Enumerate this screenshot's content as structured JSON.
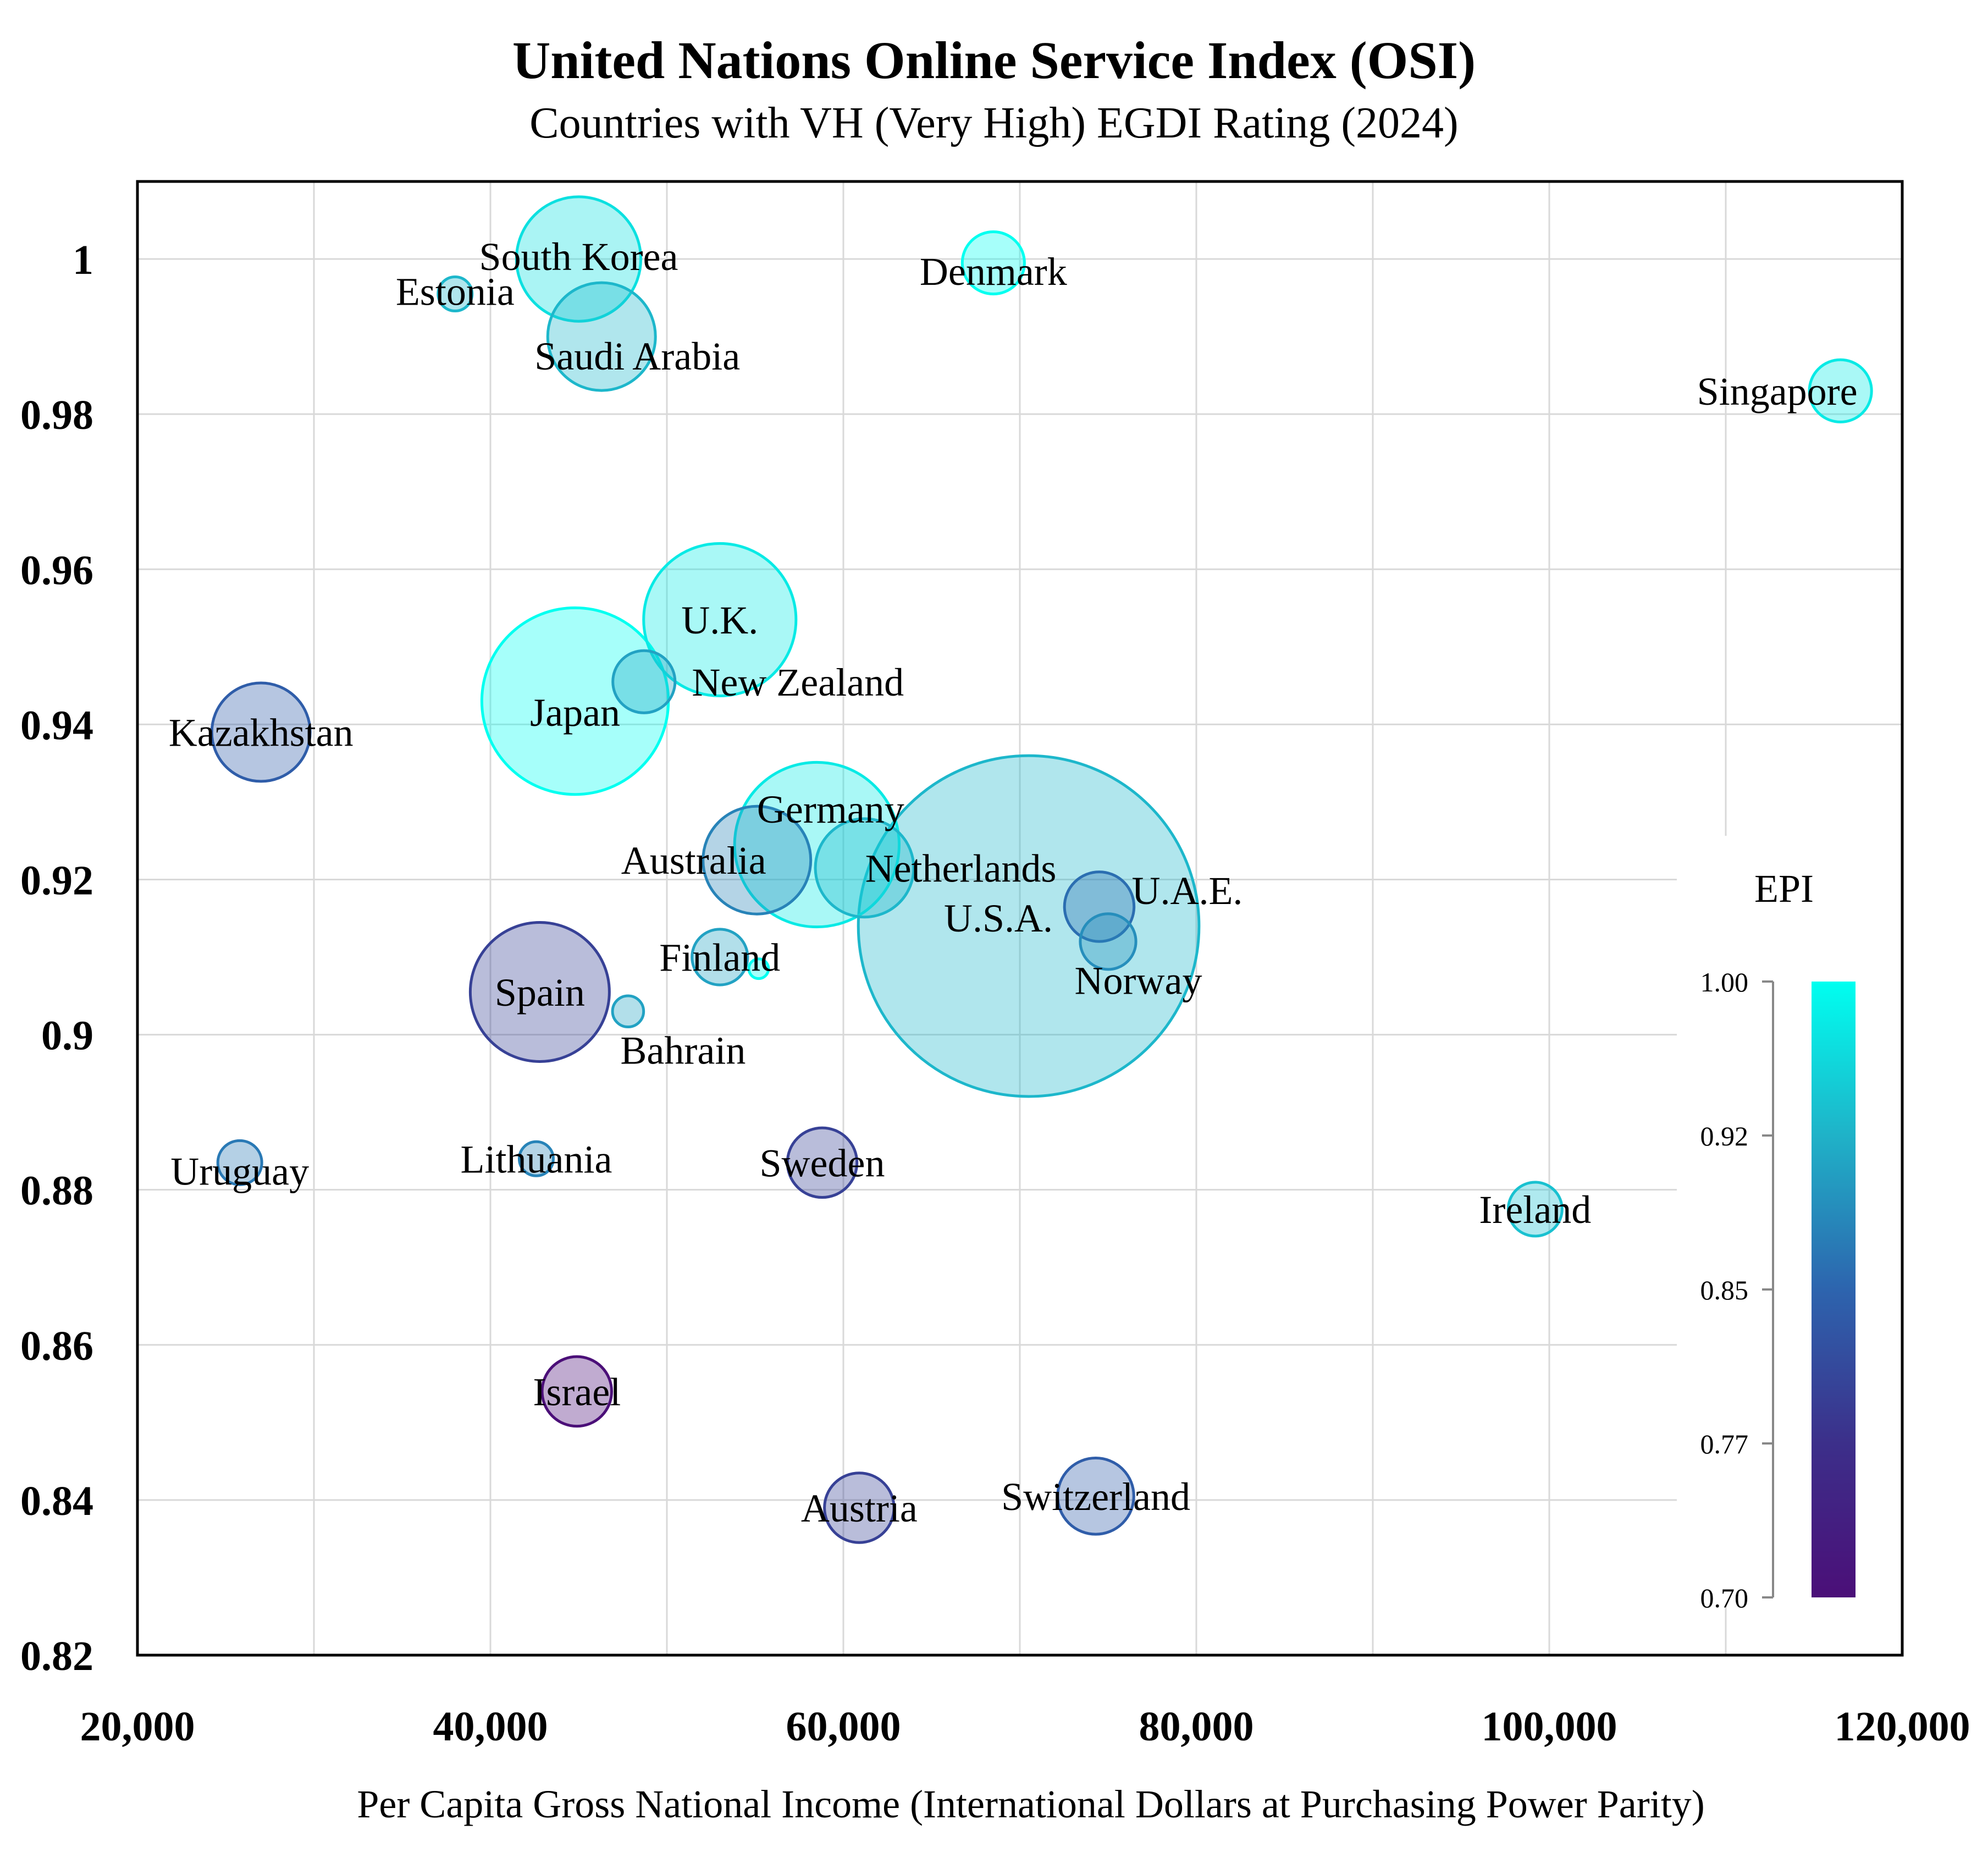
{
  "chart_data": {
    "type": "scatter",
    "title": "United Nations Online Service Index (OSI)",
    "subtitle": "Countries with VH (Very High) EGDI Rating (2024)",
    "xlabel": "Per Capita Gross National Income  (International Dollars at Purchasing Power Parity)",
    "ylabel": "",
    "xlim": [
      20000,
      120000
    ],
    "ylim": [
      0.82,
      1.01
    ],
    "x_ticks": [
      20000,
      30000,
      40000,
      50000,
      60000,
      70000,
      80000,
      90000,
      100000,
      110000,
      120000
    ],
    "x_tick_labels": [
      "20,000",
      "",
      "40,000",
      "",
      "60,000",
      "",
      "80,000",
      "",
      "100,000",
      "",
      "120,000"
    ],
    "y_ticks": [
      0.82,
      0.84,
      0.86,
      0.88,
      0.9,
      0.92,
      0.94,
      0.96,
      0.98,
      1.0
    ],
    "y_tick_labels": [
      "0.82",
      "0.84",
      "0.86",
      "0.88",
      "0.9",
      "0.92",
      "0.94",
      "0.96",
      "0.98",
      "1"
    ],
    "grid": true,
    "colorbar": {
      "title": "EPI",
      "range": [
        0.7,
        1.0
      ],
      "ticks": [
        "1.00",
        "0.92",
        "0.85",
        "0.77",
        "0.70"
      ],
      "colors": [
        "#00fff0",
        "#1fb2c8",
        "#2d64ae",
        "#3c2f8a",
        "#4b0f78"
      ]
    },
    "points": [
      {
        "label": "South Korea",
        "x": 45000,
        "y": 1.0,
        "size": 8.0,
        "epi": 0.97
      },
      {
        "label": "Estonia",
        "x": 38000,
        "y": 0.9955,
        "size": 0.6,
        "epi": 0.93
      },
      {
        "label": "Saudi Arabia",
        "x": 46300,
        "y": 0.99,
        "size": 6.0,
        "epi": 0.93
      },
      {
        "label": "Denmark",
        "x": 68500,
        "y": 0.9995,
        "size": 2.0,
        "epi": 1.0
      },
      {
        "label": "Singapore",
        "x": 116500,
        "y": 0.983,
        "size": 2.0,
        "epi": 0.98
      },
      {
        "label": "U.K.",
        "x": 53000,
        "y": 0.9535,
        "size": 12.0,
        "epi": 0.98
      },
      {
        "label": "New Zealand",
        "x": 48700,
        "y": 0.9455,
        "size": 2.0,
        "epi": 0.91
      },
      {
        "label": "Japan",
        "x": 44800,
        "y": 0.943,
        "size": 18.0,
        "epi": 1.0
      },
      {
        "label": "Kazakhstan",
        "x": 27000,
        "y": 0.939,
        "size": 5.0,
        "epi": 0.84
      },
      {
        "label": "Germany",
        "x": 58500,
        "y": 0.9245,
        "size": 14.0,
        "epi": 0.98
      },
      {
        "label": "Australia",
        "x": 55100,
        "y": 0.9225,
        "size": 6.0,
        "epi": 0.88
      },
      {
        "label": "Netherlands",
        "x": 61200,
        "y": 0.9215,
        "size": 5.0,
        "epi": 0.93
      },
      {
        "label": "U.S.A.",
        "x": 70500,
        "y": 0.914,
        "size": 60.0,
        "epi": 0.93
      },
      {
        "label": "U.A.E.",
        "x": 74500,
        "y": 0.9165,
        "size": 2.5,
        "epi": 0.86
      },
      {
        "label": "Norway",
        "x": 75000,
        "y": 0.912,
        "size": 1.6,
        "epi": 0.89
      },
      {
        "label": "Finland",
        "x": 53000,
        "y": 0.91,
        "size": 1.6,
        "epi": 0.91
      },
      {
        "label": "",
        "x": 55200,
        "y": 0.9085,
        "size": 0.2,
        "epi": 1.0
      },
      {
        "label": "Spain",
        "x": 42800,
        "y": 0.9055,
        "size": 10.0,
        "epi": 0.8
      },
      {
        "label": "Bahrain",
        "x": 47800,
        "y": 0.903,
        "size": 0.5,
        "epi": 0.91
      },
      {
        "label": "Uruguay",
        "x": 25800,
        "y": 0.8835,
        "size": 1.0,
        "epi": 0.87
      },
      {
        "label": "Lithuania",
        "x": 42600,
        "y": 0.884,
        "size": 0.6,
        "epi": 0.88
      },
      {
        "label": "Sweden",
        "x": 58800,
        "y": 0.8835,
        "size": 2.5,
        "epi": 0.8
      },
      {
        "label": "Ireland",
        "x": 99200,
        "y": 0.8775,
        "size": 1.5,
        "epi": 0.94
      },
      {
        "label": "Israel",
        "x": 44900,
        "y": 0.854,
        "size": 2.5,
        "epi": 0.7
      },
      {
        "label": "Austria",
        "x": 60900,
        "y": 0.839,
        "size": 2.5,
        "epi": 0.8
      },
      {
        "label": "Switzerland",
        "x": 74300,
        "y": 0.8405,
        "size": 3.0,
        "epi": 0.84
      }
    ]
  }
}
